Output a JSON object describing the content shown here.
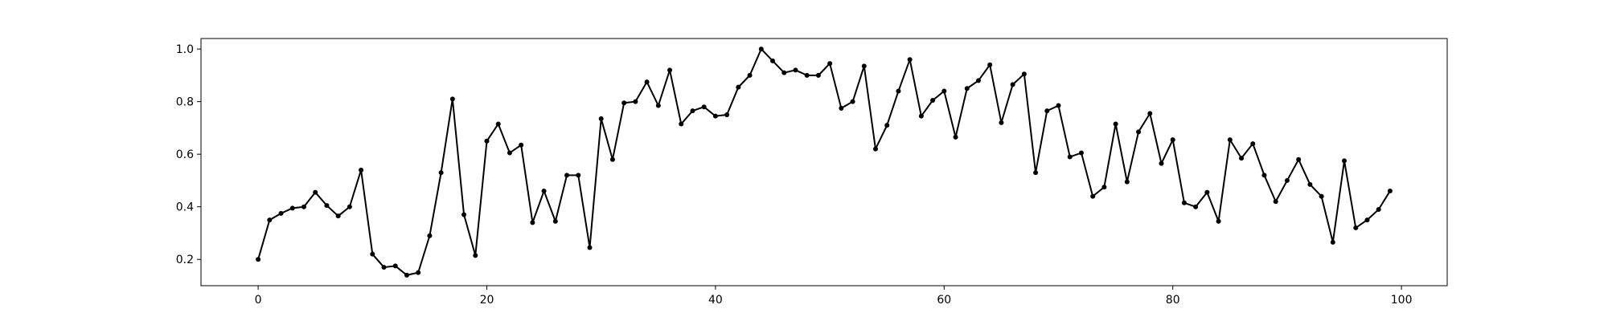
{
  "chart_data": {
    "type": "line",
    "title": "",
    "xlabel": "",
    "ylabel": "",
    "xlim": [
      -5,
      104
    ],
    "ylim": [
      0.1,
      1.04
    ],
    "grid": false,
    "legend": "none",
    "line_color": "#000000",
    "marker": "dot",
    "x_ticks": [
      0,
      20,
      40,
      60,
      80,
      100
    ],
    "x_tick_labels": [
      "0",
      "20",
      "40",
      "60",
      "80",
      "100"
    ],
    "y_ticks": [
      0.2,
      0.4,
      0.6,
      0.8,
      1.0
    ],
    "y_tick_labels": [
      "0.2",
      "0.4",
      "0.6",
      "0.8",
      "1.0"
    ],
    "series": [
      {
        "x": [
          0,
          1,
          2,
          3,
          4,
          5,
          6,
          7,
          8,
          9,
          10,
          11,
          12,
          13,
          14,
          15,
          16,
          17,
          18,
          19,
          20,
          21,
          22,
          23,
          24,
          25,
          26,
          27,
          28,
          29,
          30,
          31,
          32,
          33,
          34,
          35,
          36,
          37,
          38,
          39,
          40,
          41,
          42,
          43,
          44,
          45,
          46,
          47,
          48,
          49,
          50,
          51,
          52,
          53,
          54,
          55,
          56,
          57,
          58,
          59,
          60,
          61,
          62,
          63,
          64,
          65,
          66,
          67,
          68,
          69,
          70,
          71,
          72,
          73,
          74,
          75,
          76,
          77,
          78,
          79,
          80,
          81,
          82,
          83,
          84,
          85,
          86,
          87,
          88,
          89,
          90,
          91,
          92,
          93,
          94,
          95,
          96,
          97,
          98,
          99
        ],
        "values": [
          0.2,
          0.35,
          0.375,
          0.395,
          0.4,
          0.455,
          0.405,
          0.365,
          0.4,
          0.54,
          0.22,
          0.17,
          0.175,
          0.14,
          0.15,
          0.29,
          0.53,
          0.81,
          0.37,
          0.215,
          0.65,
          0.715,
          0.605,
          0.635,
          0.34,
          0.46,
          0.345,
          0.52,
          0.52,
          0.245,
          0.735,
          0.58,
          0.795,
          0.8,
          0.875,
          0.785,
          0.92,
          0.715,
          0.765,
          0.78,
          0.745,
          0.75,
          0.855,
          0.9,
          1.0,
          0.955,
          0.91,
          0.92,
          0.9,
          0.9,
          0.945,
          0.775,
          0.8,
          0.935,
          0.62,
          0.71,
          0.84,
          0.96,
          0.745,
          0.805,
          0.84,
          0.665,
          0.85,
          0.88,
          0.94,
          0.72,
          0.865,
          0.905,
          0.53,
          0.765,
          0.785,
          0.59,
          0.605,
          0.44,
          0.475,
          0.715,
          0.495,
          0.685,
          0.755,
          0.565,
          0.655,
          0.415,
          0.4,
          0.455,
          0.345,
          0.655,
          0.585,
          0.64,
          0.52,
          0.42,
          0.5,
          0.58,
          0.485,
          0.44,
          0.265,
          0.575,
          0.32,
          0.35,
          0.39,
          0.46
        ]
      }
    ]
  }
}
